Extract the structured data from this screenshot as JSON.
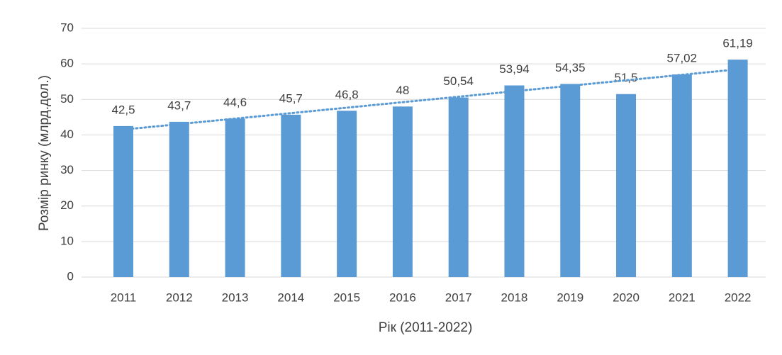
{
  "chart_data": {
    "type": "bar",
    "x_label": "Рік (2011-2022)",
    "y_label": "Розмір ринку (млрд.дол.)",
    "categories": [
      "2011",
      "2012",
      "2013",
      "2014",
      "2015",
      "2016",
      "2017",
      "2018",
      "2019",
      "2020",
      "2021",
      "2022"
    ],
    "values": [
      42.5,
      43.7,
      44.6,
      45.7,
      46.8,
      48,
      50.54,
      53.94,
      54.35,
      51.5,
      57.02,
      61.19
    ],
    "value_labels": [
      "42,5",
      "43,7",
      "44,6",
      "45,7",
      "46,8",
      "48",
      "50,54",
      "53,94",
      "54,35",
      "51,5",
      "57,02",
      "61,19"
    ],
    "color": "#5b9bd5",
    "trendline": "linear",
    "ylim": [
      0,
      70
    ],
    "yticks": [
      0,
      10,
      20,
      30,
      40,
      50,
      60,
      70
    ],
    "grid": true
  }
}
